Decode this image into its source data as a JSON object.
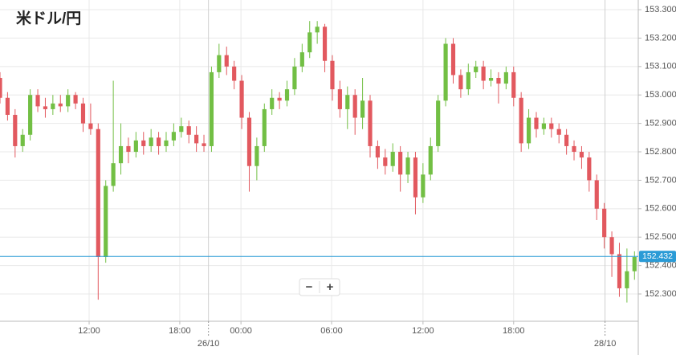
{
  "chart_data": {
    "type": "candlestick",
    "title": "米ドル/円",
    "x": [
      0,
      1,
      2,
      3,
      4,
      5,
      6,
      7,
      8,
      9,
      10,
      11,
      12,
      13,
      14,
      15,
      16,
      17,
      18,
      19,
      20,
      21,
      22,
      23,
      24,
      25,
      26,
      27,
      28,
      29,
      30,
      31,
      32,
      33,
      34,
      35,
      36,
      37,
      38,
      39,
      40,
      41,
      42,
      43,
      44,
      45,
      46,
      47,
      48,
      49,
      50,
      51,
      52,
      53,
      54,
      55,
      56,
      57,
      58,
      59,
      60,
      61,
      62,
      63,
      64,
      65,
      66,
      67,
      68,
      69,
      70,
      71,
      72,
      73,
      74,
      75,
      76,
      77,
      78,
      79,
      80,
      81,
      82,
      83,
      84
    ],
    "open": [
      153.06,
      152.99,
      152.93,
      152.82,
      152.86,
      153.0,
      152.96,
      152.95,
      152.97,
      152.96,
      153.0,
      152.97,
      152.9,
      152.88,
      152.43,
      152.68,
      152.76,
      152.82,
      152.8,
      152.84,
      152.82,
      152.85,
      152.82,
      152.84,
      152.87,
      152.89,
      152.86,
      152.83,
      152.82,
      153.08,
      153.14,
      153.1,
      153.05,
      152.92,
      152.75,
      152.82,
      152.95,
      152.99,
      152.98,
      153.02,
      153.1,
      153.15,
      153.22,
      153.24,
      153.12,
      153.02,
      152.95,
      153.0,
      152.92,
      152.98,
      152.82,
      152.78,
      152.75,
      152.8,
      152.72,
      152.78,
      152.64,
      152.72,
      152.82,
      152.98,
      153.18,
      153.07,
      153.02,
      153.08,
      153.1,
      153.05,
      153.06,
      153.04,
      153.08,
      152.99,
      152.83,
      152.92,
      152.88,
      152.9,
      152.88,
      152.86,
      152.82,
      152.8,
      152.78,
      152.7,
      152.6,
      152.5,
      152.44,
      152.32,
      152.38
    ],
    "high": [
      153.08,
      153.01,
      152.95,
      152.88,
      153.02,
      153.02,
      152.99,
      153.0,
      153.0,
      153.02,
      153.01,
      152.99,
      152.97,
      152.9,
      152.7,
      153.05,
      152.9,
      152.85,
      152.87,
      152.87,
      152.88,
      152.87,
      152.87,
      152.9,
      152.92,
      152.91,
      152.89,
      152.86,
      153.1,
      153.18,
      153.17,
      153.12,
      153.07,
      152.94,
      152.85,
      152.97,
      153.02,
      153.01,
      153.05,
      153.13,
      153.18,
      153.26,
      153.26,
      153.25,
      153.14,
      153.05,
      153.03,
      153.02,
      153.06,
      153.0,
      152.84,
      152.81,
      152.83,
      152.82,
      152.8,
      152.8,
      152.76,
      152.85,
      153.0,
      153.2,
      153.2,
      153.09,
      153.11,
      153.12,
      153.12,
      153.09,
      153.08,
      153.1,
      153.1,
      153.01,
      152.95,
      152.94,
      152.92,
      152.92,
      152.9,
      152.88,
      152.84,
      152.82,
      152.8,
      152.72,
      152.62,
      152.52,
      152.48,
      152.46,
      152.45
    ],
    "low": [
      152.97,
      152.91,
      152.78,
      152.8,
      152.84,
      152.94,
      152.92,
      152.93,
      152.94,
      152.94,
      152.95,
      152.87,
      152.86,
      152.28,
      152.41,
      152.66,
      152.72,
      152.76,
      152.78,
      152.79,
      152.8,
      152.79,
      152.8,
      152.82,
      152.85,
      152.83,
      152.8,
      152.8,
      152.8,
      153.06,
      153.07,
      153.02,
      152.88,
      152.66,
      152.7,
      152.8,
      152.93,
      152.95,
      152.96,
      153.0,
      153.08,
      153.13,
      153.18,
      153.08,
      152.98,
      152.92,
      152.88,
      152.86,
      152.88,
      152.78,
      152.74,
      152.72,
      152.73,
      152.66,
      152.69,
      152.58,
      152.62,
      152.7,
      152.8,
      152.96,
      153.04,
      152.99,
      153.0,
      153.06,
      153.02,
      153.03,
      152.97,
      153.02,
      152.96,
      152.8,
      152.81,
      152.85,
      152.86,
      152.85,
      152.83,
      152.79,
      152.77,
      152.74,
      152.66,
      152.56,
      152.46,
      152.36,
      152.29,
      152.27,
      152.35
    ],
    "close": [
      152.99,
      152.93,
      152.82,
      152.86,
      153.0,
      152.96,
      152.95,
      152.97,
      152.96,
      153.0,
      152.97,
      152.9,
      152.88,
      152.43,
      152.68,
      152.76,
      152.82,
      152.8,
      152.84,
      152.82,
      152.85,
      152.82,
      152.84,
      152.87,
      152.89,
      152.86,
      152.83,
      152.82,
      153.08,
      153.14,
      153.1,
      153.05,
      152.92,
      152.75,
      152.82,
      152.95,
      152.99,
      152.98,
      153.02,
      153.1,
      153.15,
      153.22,
      153.24,
      153.12,
      153.02,
      152.95,
      153.0,
      152.92,
      152.98,
      152.82,
      152.78,
      152.75,
      152.8,
      152.72,
      152.78,
      152.64,
      152.72,
      152.82,
      152.98,
      153.18,
      153.07,
      153.02,
      153.08,
      153.1,
      153.05,
      153.06,
      153.04,
      153.08,
      152.99,
      152.83,
      152.92,
      152.88,
      152.9,
      152.88,
      152.86,
      152.82,
      152.8,
      152.78,
      152.7,
      152.6,
      152.5,
      152.44,
      152.32,
      152.38,
      152.43
    ],
    "up_color": "#72bf44",
    "down_color": "#e2595f",
    "xlim": [
      0,
      84.5
    ],
    "xticks": [
      {
        "value": 11.8,
        "label": "12:00"
      },
      {
        "value": 23.8,
        "label": "18:00"
      },
      {
        "value": 31.9,
        "label": "00:00"
      },
      {
        "value": 43.9,
        "label": "06:00"
      },
      {
        "value": 56.0,
        "label": "12:00"
      },
      {
        "value": 68.0,
        "label": "18:00"
      }
    ],
    "date_labels": [
      {
        "value": 27.6,
        "label": "26/10"
      },
      {
        "value": 80.1,
        "label": "28/10"
      }
    ],
    "ylim": [
      152.204,
      153.334
    ],
    "yticks": [
      {
        "value": 152.3,
        "label": "152.300"
      },
      {
        "value": 152.4,
        "label": "152.400"
      },
      {
        "value": 152.5,
        "label": "152.500"
      },
      {
        "value": 152.6,
        "label": "152.600"
      },
      {
        "value": 152.7,
        "label": "152.700"
      },
      {
        "value": 152.8,
        "label": "152.800"
      },
      {
        "value": 152.9,
        "label": "152.900"
      },
      {
        "value": 153.0,
        "label": "153.000"
      },
      {
        "value": 153.1,
        "label": "153.100"
      },
      {
        "value": 153.2,
        "label": "153.200"
      },
      {
        "value": 153.3,
        "label": "153.300"
      }
    ],
    "grid": true,
    "last_price": 152.432,
    "last_price_color": "#2a9bd6",
    "controls": [
      "−",
      "+"
    ]
  }
}
